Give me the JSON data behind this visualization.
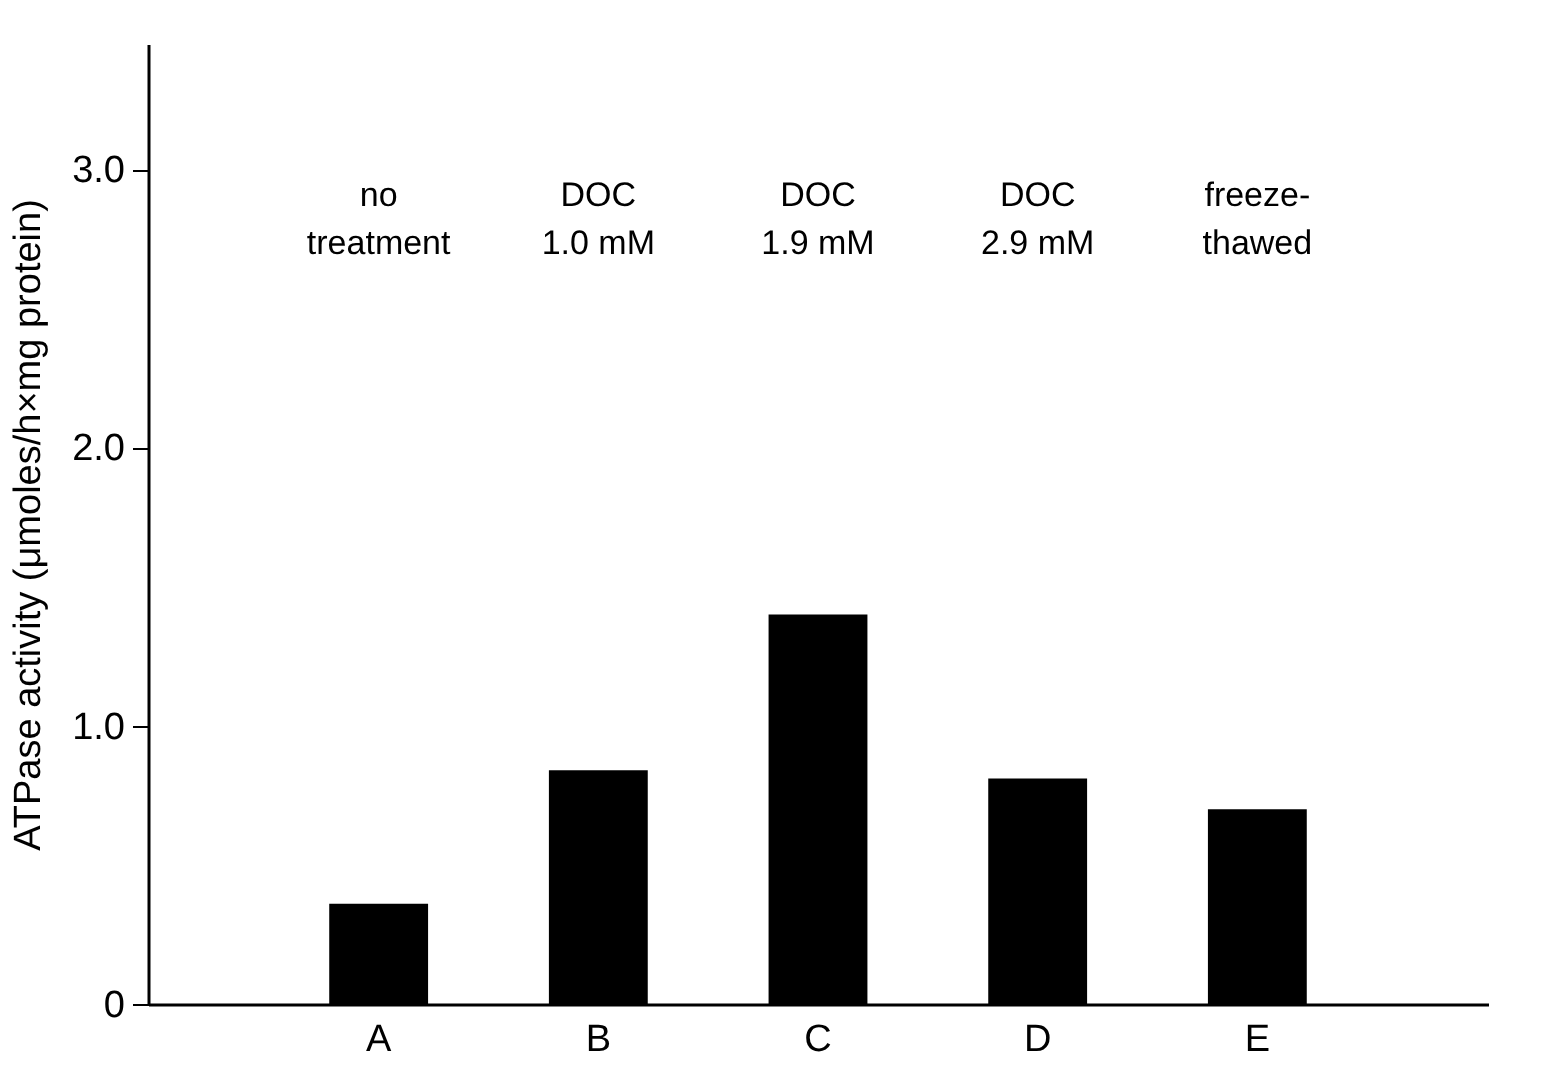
{
  "chart_data": {
    "type": "bar",
    "ylabel": "ATPase activity (μmoles/h×mg protein)",
    "categories": [
      "A",
      "B",
      "C",
      "D",
      "E"
    ],
    "values": [
      0.36,
      0.84,
      1.4,
      0.81,
      0.7
    ],
    "color": "#000000",
    "ylim": [
      0,
      3.45
    ],
    "yticks": [
      {
        "value": 0,
        "label": "0"
      },
      {
        "value": 1,
        "label": "1.0"
      },
      {
        "value": 2,
        "label": "2.0"
      },
      {
        "value": 3,
        "label": "3.0"
      }
    ],
    "grid": false,
    "annotations": [
      "no\ntreatment",
      "DOC\n1.0 mM",
      "DOC\n1.9 mM",
      "DOC\n2.9 mM",
      "freeze-\nthawed"
    ]
  }
}
